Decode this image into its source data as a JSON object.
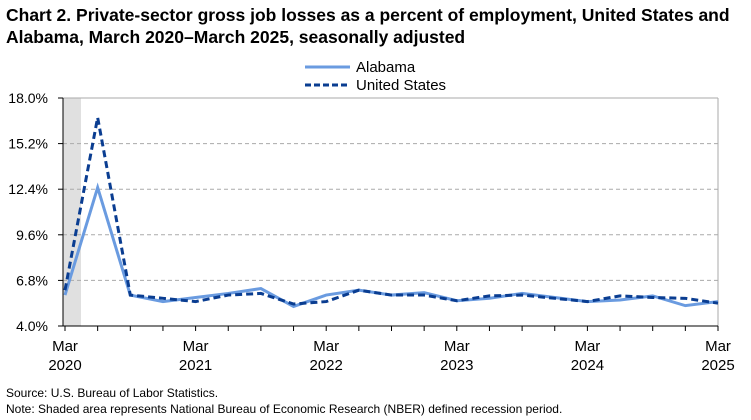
{
  "chart_data": {
    "type": "line",
    "title": "Chart 2. Private-sector gross job losses as a percent of employment, United States and Alabama, March 2020–March 2025, seasonally adjusted",
    "x": [
      "Mar 2020",
      "Jun 2020",
      "Sep 2020",
      "Dec 2020",
      "Mar 2021",
      "Jun 2021",
      "Sep 2021",
      "Dec 2021",
      "Mar 2022",
      "Jun 2022",
      "Sep 2022",
      "Dec 2022",
      "Mar 2023",
      "Jun 2023",
      "Sep 2023",
      "Dec 2023",
      "Mar 2024",
      "Jun 2024",
      "Sep 2024",
      "Dec 2024",
      "Mar 2025"
    ],
    "x_tick_labels": [
      [
        "Mar",
        "2020"
      ],
      [
        "Mar",
        "2021"
      ],
      [
        "Mar",
        "2022"
      ],
      [
        "Mar",
        "2023"
      ],
      [
        "Mar",
        "2024"
      ],
      [
        "Mar",
        "2025"
      ]
    ],
    "series": [
      {
        "name": "Alabama",
        "color": "#6a9be0",
        "style": "solid",
        "values": [
          5.9,
          12.5,
          5.9,
          5.5,
          5.75,
          6.0,
          6.3,
          5.2,
          5.9,
          6.2,
          5.9,
          6.05,
          5.55,
          5.7,
          6.0,
          5.75,
          5.5,
          5.6,
          5.85,
          5.25,
          5.5
        ]
      },
      {
        "name": "United States",
        "color": "#0a3d91",
        "style": "dashed",
        "values": [
          6.2,
          16.8,
          5.9,
          5.7,
          5.5,
          5.9,
          6.0,
          5.35,
          5.5,
          6.2,
          5.9,
          5.9,
          5.55,
          5.85,
          5.9,
          5.7,
          5.5,
          5.85,
          5.75,
          5.7,
          5.4
        ]
      }
    ],
    "ylim": [
      4.0,
      18.0
    ],
    "y_ticks": [
      "4.0%",
      "6.8%",
      "9.6%",
      "12.4%",
      "15.2%",
      "18.0%"
    ],
    "y_tick_values": [
      4.0,
      6.8,
      9.6,
      12.4,
      15.2,
      18.0
    ],
    "grid": true,
    "legend": "top-center",
    "recession_shading": {
      "from": "Mar 2020",
      "to": "Apr 2020",
      "color": "#e0e0e0"
    }
  },
  "source": "Source: U.S. Bureau of Labor Statistics.",
  "note": "Note: Shaded area represents National Bureau of Economic Research (NBER) defined  recession period."
}
